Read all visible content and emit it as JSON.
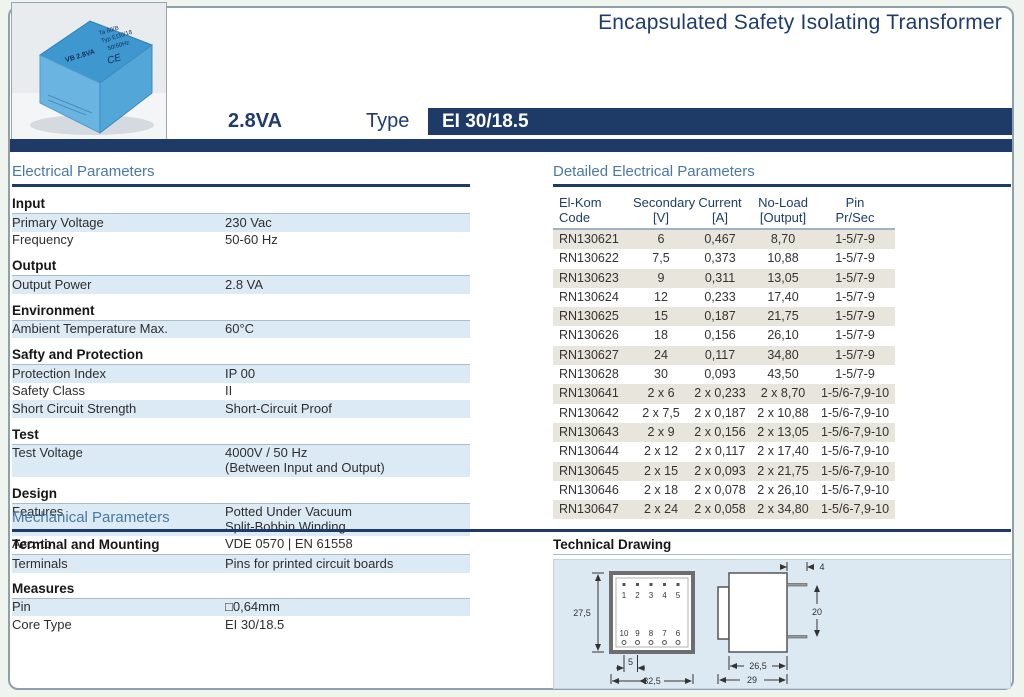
{
  "header": {
    "title": "Encapsulated Safety Isolating Transformer",
    "power": "2.8VA",
    "type_label": "Type",
    "type_value": "EI 30/18.5"
  },
  "photo": {
    "ta": "Ta 60/B",
    "typ": "Typ EI30/18",
    "vb": "VB 2.8VA",
    "hz": "50/60Hz",
    "ce": "CE"
  },
  "electrical": {
    "heading": "Electrical Parameters",
    "sections": [
      {
        "title": "Input",
        "rows": [
          {
            "label": "Primary Voltage",
            "value": "230 Vac"
          },
          {
            "label": "Frequency",
            "value": "50-60 Hz"
          }
        ]
      },
      {
        "title": "Output",
        "rows": [
          {
            "label": "Output Power",
            "value": "2.8 VA"
          }
        ]
      },
      {
        "title": "Environment",
        "rows": [
          {
            "label": "Ambient Temperature Max.",
            "value": "60°C"
          }
        ]
      },
      {
        "title": "Safty and Protection",
        "rows": [
          {
            "label": "Protection Index",
            "value": "IP 00"
          },
          {
            "label": "Safety Class",
            "value": "II"
          },
          {
            "label": "Short Circuit Strength",
            "value": "Short-Circuit Proof"
          }
        ]
      },
      {
        "title": "Test",
        "rows": [
          {
            "label": "Test Voltage",
            "value": "4000V / 50 Hz",
            "value2": "(Between Input and Output)"
          }
        ]
      },
      {
        "title": "Design",
        "rows": [
          {
            "label": "Features",
            "value": "Potted Under Vacuum",
            "value2": "Split-Bobbin Winding"
          },
          {
            "label": "Acc. to",
            "value": "VDE 0570 | EN 61558"
          }
        ]
      }
    ]
  },
  "detailed": {
    "heading": "Detailed Electrical Parameters",
    "columns": [
      {
        "l1": "El-Kom",
        "l2": "Code"
      },
      {
        "l1": "Secondary",
        "l2": "[V]"
      },
      {
        "l1": "Current",
        "l2": "[A]"
      },
      {
        "l1": "No-Load",
        "l2": "[Output]"
      },
      {
        "l1": "Pin",
        "l2": "Pr/Sec"
      }
    ],
    "rows": [
      {
        "code": "RN130621",
        "secondary": "6",
        "current": "0,467",
        "noload": "8,70",
        "pin": "1-5/7-9"
      },
      {
        "code": "RN130622",
        "secondary": "7,5",
        "current": "0,373",
        "noload": "10,88",
        "pin": "1-5/7-9"
      },
      {
        "code": "RN130623",
        "secondary": "9",
        "current": "0,311",
        "noload": "13,05",
        "pin": "1-5/7-9"
      },
      {
        "code": "RN130624",
        "secondary": "12",
        "current": "0,233",
        "noload": "17,40",
        "pin": "1-5/7-9"
      },
      {
        "code": "RN130625",
        "secondary": "15",
        "current": "0,187",
        "noload": "21,75",
        "pin": "1-5/7-9"
      },
      {
        "code": "RN130626",
        "secondary": "18",
        "current": "0,156",
        "noload": "26,10",
        "pin": "1-5/7-9"
      },
      {
        "code": "RN130627",
        "secondary": "24",
        "current": "0,117",
        "noload": "34,80",
        "pin": "1-5/7-9"
      },
      {
        "code": "RN130628",
        "secondary": "30",
        "current": "0,093",
        "noload": "43,50",
        "pin": "1-5/7-9"
      },
      {
        "code": "RN130641",
        "secondary": "2 x 6",
        "current": "2 x 0,233",
        "noload": "2 x 8,70",
        "pin": "1-5/6-7,9-10"
      },
      {
        "code": "RN130642",
        "secondary": "2 x 7,5",
        "current": "2 x 0,187",
        "noload": "2 x 10,88",
        "pin": "1-5/6-7,9-10"
      },
      {
        "code": "RN130643",
        "secondary": "2 x 9",
        "current": "2 x 0,156",
        "noload": "2 x 13,05",
        "pin": "1-5/6-7,9-10"
      },
      {
        "code": "RN130644",
        "secondary": "2 x 12",
        "current": "2 x 0,117",
        "noload": "2 x 17,40",
        "pin": "1-5/6-7,9-10"
      },
      {
        "code": "RN130645",
        "secondary": "2 x 15",
        "current": "2 x 0,093",
        "noload": "2 x 21,75",
        "pin": "1-5/6-7,9-10"
      },
      {
        "code": "RN130646",
        "secondary": "2 x 18",
        "current": "2 x 0,078",
        "noload": "2 x 26,10",
        "pin": "1-5/6-7,9-10"
      },
      {
        "code": "RN130647",
        "secondary": "2 x 24",
        "current": "2 x 0,058",
        "noload": "2 x 34,80",
        "pin": "1-5/6-7,9-10"
      }
    ]
  },
  "mechanical": {
    "heading": "Mechanical Parameters",
    "terminal_heading": "Terminal and Mounting",
    "terminals_label": "Terminals",
    "terminals_value": "Pins for printed circuit boards",
    "measures_heading": "Measures",
    "pin_label": "Pin",
    "pin_value": "□0,64mm",
    "core_label": "Core Type",
    "core_value": "EI 30/18.5"
  },
  "drawing": {
    "heading": "Technical Drawing",
    "top_pins": [
      "1",
      "2",
      "3",
      "4",
      "5"
    ],
    "bottom_pins": [
      "10",
      "9",
      "8",
      "7",
      "6"
    ],
    "dims": {
      "height": "27,5",
      "pitch": "5",
      "width": "32,5",
      "pin_len": "4",
      "pin_span": "20",
      "depth": "26,5",
      "depth_total": "29"
    }
  },
  "colors": {
    "navy": "#1e3a66",
    "steel_blue": "#4a78a5",
    "stripe_blue": "#dceaf5",
    "stripe_beige": "#e8e5dc",
    "panel_blue": "#dce9f2"
  }
}
